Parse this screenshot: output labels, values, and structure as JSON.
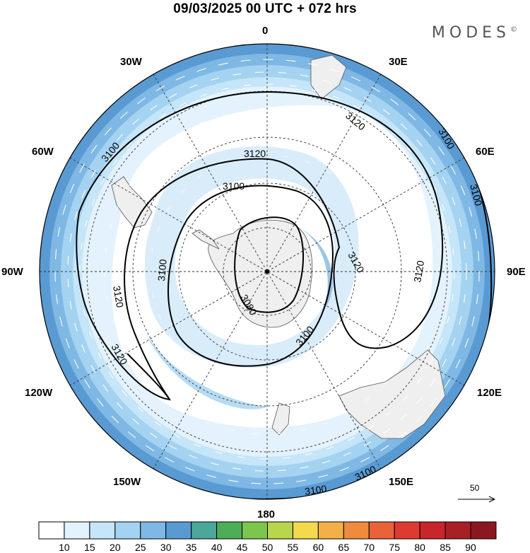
{
  "header": {
    "title": "09/03/2025  00 UTC  + 072 hrs",
    "brand": "MODES",
    "brand_mark": "©"
  },
  "map": {
    "projection": "south-polar-stereographic",
    "longitude_labels": [
      "0",
      "30E",
      "60E",
      "90E",
      "120E",
      "150E",
      "180",
      "150W",
      "120W",
      "90W",
      "60W",
      "30W"
    ],
    "contour_labels": [
      "3120",
      "3120",
      "3100",
      "3100",
      "3080",
      "3120",
      "3100",
      "3120",
      "3120",
      "3120",
      "3100",
      "3100",
      "3100",
      "3100",
      "3100"
    ],
    "wind_reference": {
      "value": "50"
    }
  },
  "colorbar": {
    "labels": [
      "10",
      "15",
      "20",
      "25",
      "30",
      "35",
      "40",
      "45",
      "50",
      "55",
      "60",
      "65",
      "70",
      "75",
      "80",
      "85",
      "90"
    ],
    "colors": [
      "#ffffff",
      "#e3f2fc",
      "#c5e5f8",
      "#a4d2f1",
      "#7fb8e4",
      "#5a9ad3",
      "#4aa79a",
      "#4dae58",
      "#7cc64e",
      "#b9d54c",
      "#f3d94b",
      "#f4b048",
      "#f08a3c",
      "#e9623a",
      "#dd3b32",
      "#c8262b",
      "#a91f26",
      "#8b1820"
    ]
  }
}
